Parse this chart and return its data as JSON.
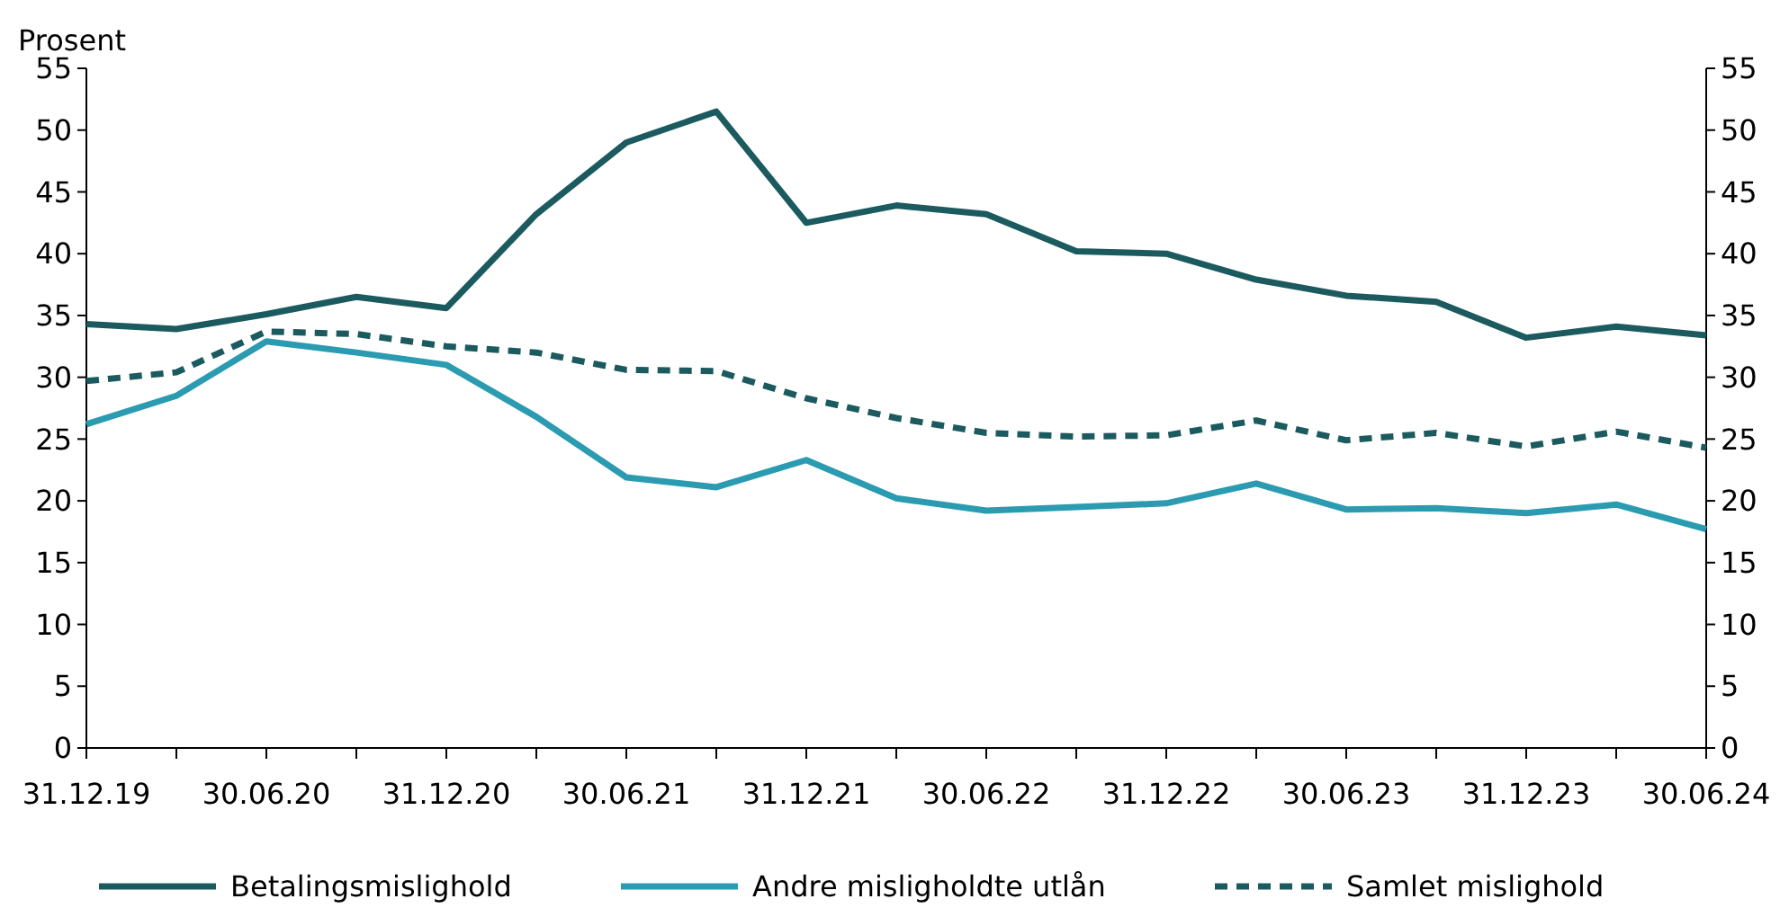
{
  "chart_data": {
    "type": "line",
    "ylabel": "Prosent",
    "categories": [
      "31.12.19",
      null,
      "30.06.20",
      null,
      "31.12.20",
      null,
      "30.06.21",
      null,
      "31.12.21",
      null,
      "30.06.22",
      null,
      "31.12.22",
      null,
      "30.06.23",
      null,
      "31.12.23",
      null,
      "30.06.24"
    ],
    "series": [
      {
        "name": "Betalingsmislighold",
        "color": "#1b5a5e",
        "line_style": "solid",
        "values": [
          34.3,
          33.9,
          35.1,
          36.5,
          35.6,
          43.2,
          49.0,
          51.5,
          42.5,
          43.9,
          43.2,
          40.2,
          40.0,
          37.9,
          36.6,
          36.1,
          33.2,
          34.1,
          33.4
        ]
      },
      {
        "name": "Andre misligholdte utlån",
        "color": "#2a9bb0",
        "line_style": "solid",
        "values": [
          26.2,
          28.5,
          32.9,
          32.0,
          31.0,
          26.8,
          21.9,
          21.1,
          23.3,
          20.2,
          19.2,
          19.5,
          19.8,
          21.4,
          19.3,
          19.4,
          19.0,
          19.7,
          17.7
        ]
      },
      {
        "name": "Samlet mislighold",
        "color": "#1b5a5e",
        "line_style": "dashed",
        "values": [
          29.7,
          30.4,
          33.7,
          33.5,
          32.5,
          32.0,
          30.6,
          30.5,
          28.3,
          26.7,
          25.5,
          25.2,
          25.3,
          26.5,
          24.9,
          25.5,
          24.4,
          25.6,
          24.3
        ]
      }
    ],
    "ylim": [
      0,
      55
    ],
    "yticks": [
      0,
      5,
      10,
      15,
      20,
      25,
      30,
      35,
      40,
      45,
      50,
      55
    ],
    "y2lim": [
      0,
      55
    ],
    "y2ticks": [
      0,
      5,
      10,
      15,
      20,
      25,
      30,
      35,
      40,
      45,
      50,
      55
    ],
    "grid": false,
    "legend": "bottom"
  }
}
